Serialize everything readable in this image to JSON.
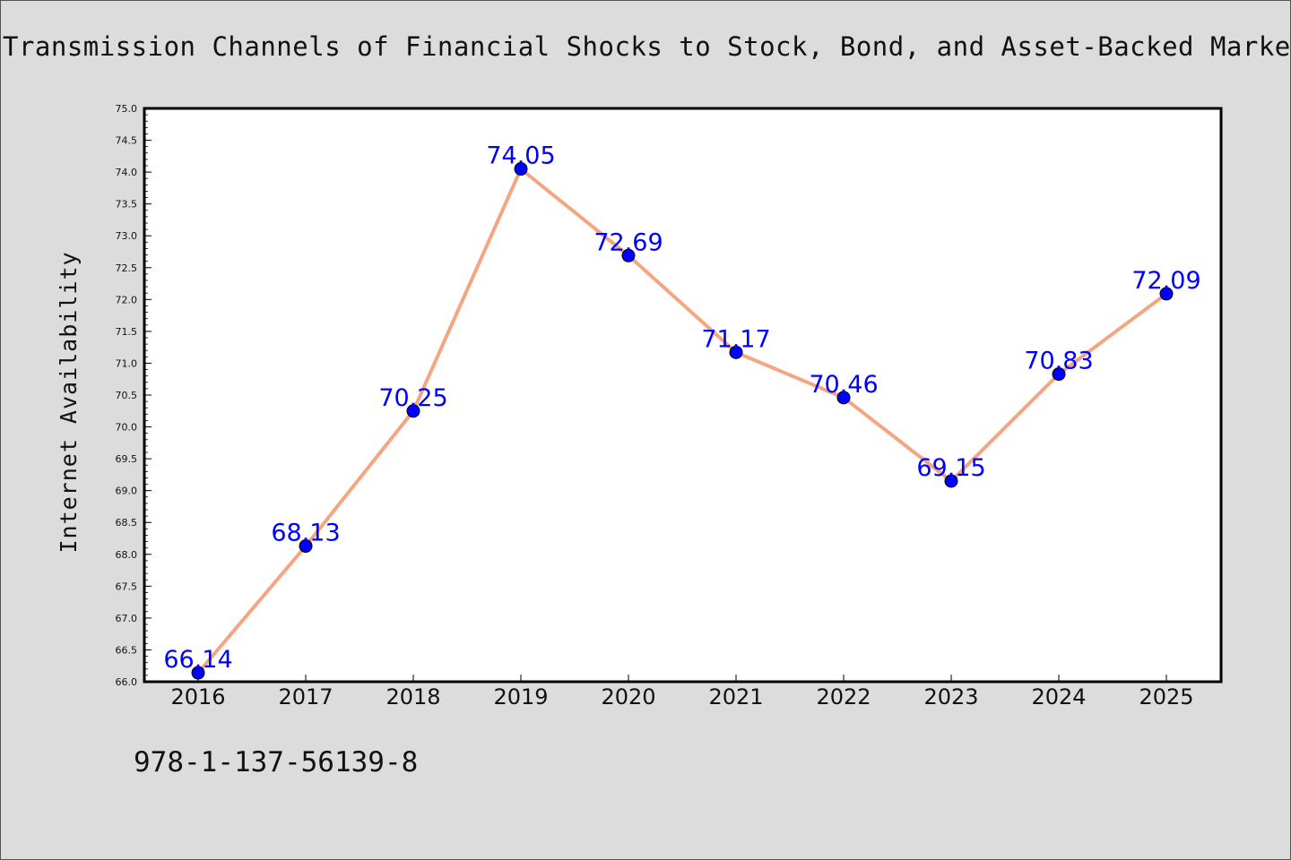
{
  "chart_data": {
    "type": "line",
    "title": "Transmission Channels of Financial Shocks to Stock, Bond, and Asset-Backed Markets",
    "xlabel": "",
    "ylabel": "Internet Availability",
    "categories": [
      "2016",
      "2017",
      "2018",
      "2019",
      "2020",
      "2021",
      "2022",
      "2023",
      "2024",
      "2025"
    ],
    "series": [
      {
        "values": [
          66.14,
          68.13,
          70.25,
          74.05,
          72.69,
          71.17,
          70.46,
          69.15,
          70.83,
          72.09
        ]
      }
    ],
    "data_labels": [
      "66.14",
      "68.13",
      "70.25",
      "74.05",
      "72.69",
      "71.17",
      "70.46",
      "69.15",
      "70.83",
      "72.09"
    ],
    "ylim": [
      66.0,
      75.0
    ],
    "yticks": [
      "66.0",
      "66.5",
      "67.0",
      "67.5",
      "68.0",
      "68.5",
      "69.0",
      "69.5",
      "70.0",
      "70.5",
      "71.0",
      "71.5",
      "72.0",
      "72.5",
      "73.0",
      "73.5",
      "74.0",
      "74.5",
      "75.0"
    ],
    "grid": false,
    "legend": "none",
    "colors": {
      "line": "#f4a582",
      "marker": "#0000ff",
      "label": "#0000ff",
      "plot_background": "#ffffff",
      "figure_background": "#dcdcdc"
    }
  },
  "footer": {
    "identifier": "978-1-137-56139-8"
  }
}
